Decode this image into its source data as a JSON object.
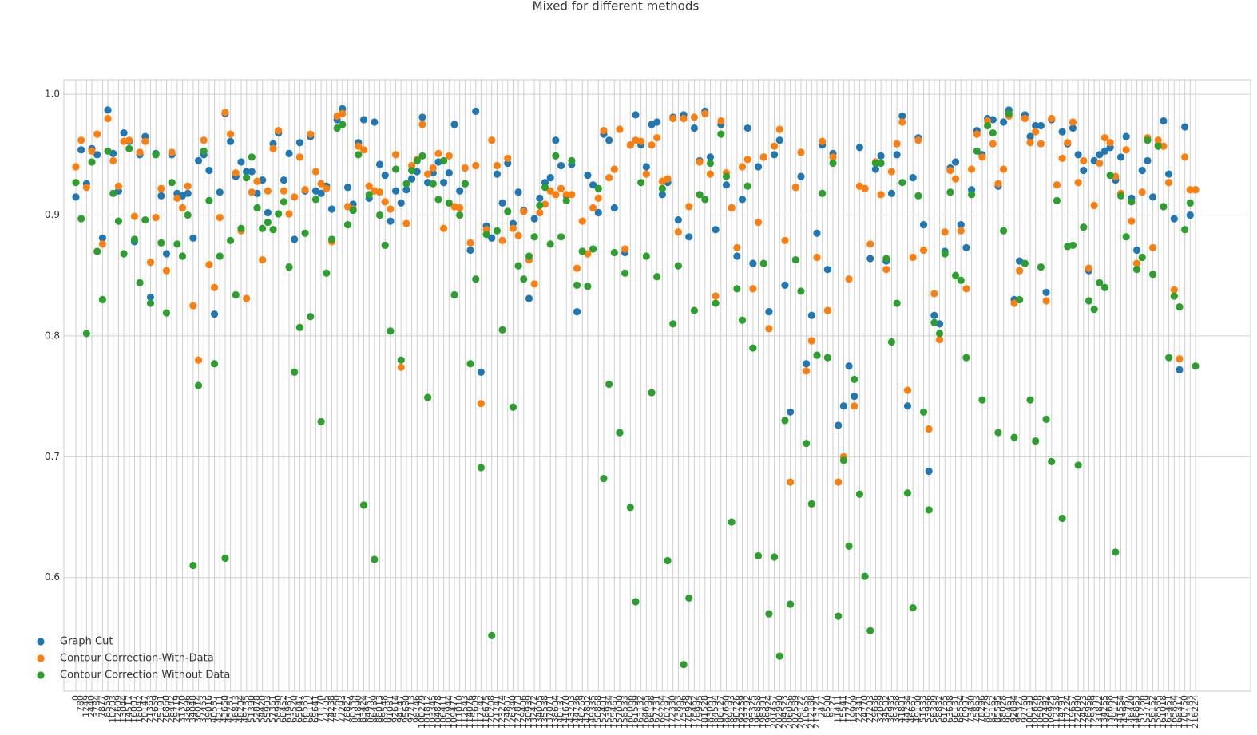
{
  "chart_data": {
    "type": "scatter",
    "title": "Mixed for different methods",
    "categories": [
      "0",
      "780",
      "1249",
      "2440",
      "3784",
      "7877",
      "8559",
      "10203",
      "12609",
      "13044",
      "14517",
      "16007",
      "18042",
      "20147",
      "21363",
      "23659",
      "25191",
      "26860",
      "28442",
      "29719",
      "31370",
      "32696",
      "34048",
      "36014",
      "37453",
      "39016",
      "40587",
      "42111",
      "43650",
      "45287",
      "46813",
      "48204",
      "49735",
      "51390",
      "52878",
      "54420",
      "55903",
      "57361",
      "58990",
      "60452",
      "61987",
      "63520",
      "65047",
      "66583",
      "68112",
      "69641",
      "71170",
      "72705",
      "74238",
      "75760",
      "77293",
      "78827",
      "80359",
      "81890",
      "83424",
      "84957",
      "86489",
      "88013",
      "89548",
      "91081",
      "92614",
      "94147",
      "95680",
      "97213",
      "98746",
      "100279",
      "101812",
      "103345",
      "104878",
      "106411",
      "107944",
      "109477",
      "111010",
      "112543",
      "114076",
      "115609",
      "117142",
      "118675",
      "120208",
      "121741",
      "123274",
      "124807",
      "126340",
      "127873",
      "129406",
      "130939",
      "132472",
      "134005",
      "135538",
      "137071",
      "138604",
      "140137",
      "141670",
      "143203",
      "144736",
      "146269",
      "147802",
      "149335",
      "150868",
      "152401",
      "153934",
      "155467",
      "157000",
      "158533",
      "160066",
      "161599",
      "163132",
      "164665",
      "166198",
      "167731",
      "169264",
      "170797",
      "172330",
      "173863",
      "175396",
      "176929",
      "178462",
      "179995",
      "181528",
      "183061",
      "184594",
      "186127",
      "187660",
      "189193",
      "190726",
      "192259",
      "193792",
      "195325",
      "196858",
      "198391",
      "199924",
      "201457",
      "202990",
      "204523",
      "206056",
      "207589",
      "209122",
      "210655",
      "212188",
      "213721",
      "2477",
      "8500",
      "9127",
      "11411",
      "15541",
      "17277",
      "19909",
      "22341",
      "24770",
      "27203",
      "29636",
      "32069",
      "34502",
      "36935",
      "39368",
      "41801",
      "44234",
      "46667",
      "49100",
      "51533",
      "53966",
      "56399",
      "58832",
      "61265",
      "63698",
      "66131",
      "68564",
      "70997",
      "73430",
      "75863",
      "78296",
      "80729",
      "83162",
      "85595",
      "88028",
      "90461",
      "92894",
      "95327",
      "97760",
      "100193",
      "102626",
      "105059",
      "107492",
      "109925",
      "112358",
      "114791",
      "117224",
      "119657",
      "122090",
      "124523",
      "126956",
      "129389",
      "131822",
      "134255",
      "136688",
      "139121",
      "141554",
      "143987",
      "146420",
      "148853",
      "151286",
      "153719",
      "156152",
      "158585",
      "161018",
      "163451",
      "165884",
      "168317",
      "170750",
      "173183",
      "216224"
    ],
    "series": [
      {
        "name": "Graph Cut",
        "color": "#1f77b4",
        "values": [
          0.915,
          0.954,
          0.926,
          0.955,
          0.95,
          0.881,
          0.987,
          0.951,
          0.92,
          0.968,
          0.961,
          0.878,
          0.95,
          0.965,
          0.832,
          0.951,
          0.916,
          0.868,
          0.95,
          0.918,
          0.916,
          0.918,
          0.881,
          0.945,
          0.95,
          0.937,
          0.818,
          0.919,
          0.984,
          0.961,
          0.932,
          0.944,
          0.936,
          0.936,
          0.918,
          0.929,
          0.902,
          0.959,
          0.968,
          0.929,
          0.951,
          0.88,
          0.96,
          0.92,
          0.965,
          0.92,
          0.918,
          0.924,
          0.905,
          0.979,
          0.988,
          0.923,
          0.909,
          0.96,
          0.979,
          0.914,
          0.977,
          0.942,
          0.933,
          0.895,
          0.92,
          0.91,
          0.921,
          0.93,
          0.936,
          0.981,
          0.927,
          0.935,
          0.944,
          0.927,
          0.935,
          0.975,
          0.92,
          0.926,
          0.871,
          0.986,
          0.77,
          0.891,
          0.881,
          0.934,
          0.91,
          0.943,
          0.893,
          0.919,
          0.904,
          0.831,
          0.897,
          0.914,
          0.927,
          0.931,
          0.962,
          0.941,
          0.916,
          0.942,
          0.82,
          0.87,
          0.933,
          0.925,
          0.902,
          0.967,
          0.962,
          0.906,
          0.72,
          0.869,
          0.958,
          0.983,
          0.958,
          0.94,
          0.975,
          0.977,
          0.917,
          0.927,
          0.981,
          0.896,
          0.983,
          0.882,
          0.972,
          0.945,
          0.986,
          0.948,
          0.888,
          0.975,
          0.925,
          0.906,
          0.866,
          0.913,
          0.972,
          0.86,
          0.94,
          0.948,
          0.82,
          0.95,
          0.962,
          0.842,
          0.737,
          0.923,
          0.932,
          0.777,
          0.817,
          0.885,
          0.958,
          0.855,
          0.951,
          0.726,
          0.742,
          0.775,
          0.75,
          0.956,
          0.922,
          0.864,
          0.938,
          0.949,
          0.862,
          0.918,
          0.95,
          0.982,
          0.742,
          0.931,
          0.964,
          0.892,
          0.688,
          0.817,
          0.81,
          0.87,
          0.939,
          0.944,
          0.892,
          0.873,
          0.921,
          0.97,
          0.95,
          0.98,
          0.979,
          0.924,
          0.977,
          0.987,
          0.83,
          0.862,
          0.983,
          0.965,
          0.974,
          0.974,
          0.836,
          0.979,
          0.925,
          0.969,
          0.959,
          0.972,
          0.95,
          0.937,
          0.854,
          0.945,
          0.95,
          0.953,
          0.956,
          0.929,
          0.948,
          0.965,
          0.914,
          0.871,
          0.937,
          0.945,
          0.915,
          0.958,
          0.978,
          0.934,
          0.897,
          0.772,
          0.973,
          0.9,
          0.921
        ]
      },
      {
        "name": "Contour Correction-With-Data",
        "color": "#ff7f0e",
        "values": [
          0.94,
          0.962,
          0.923,
          0.953,
          0.967,
          0.876,
          0.98,
          0.945,
          0.924,
          0.961,
          0.962,
          0.899,
          0.952,
          0.961,
          0.861,
          0.898,
          0.922,
          0.854,
          0.952,
          0.914,
          0.906,
          0.924,
          0.825,
          0.78,
          0.962,
          0.859,
          0.84,
          0.898,
          0.985,
          0.967,
          0.935,
          0.887,
          0.831,
          0.919,
          0.928,
          0.863,
          0.92,
          0.955,
          0.97,
          0.92,
          0.901,
          0.915,
          0.948,
          0.921,
          0.967,
          0.936,
          0.926,
          0.922,
          0.878,
          0.982,
          0.984,
          0.907,
          0.905,
          0.957,
          0.954,
          0.924,
          0.92,
          0.919,
          0.911,
          0.905,
          0.95,
          0.774,
          0.893,
          0.941,
          0.946,
          0.975,
          0.934,
          0.939,
          0.951,
          0.889,
          0.949,
          0.907,
          0.906,
          0.939,
          0.877,
          0.941,
          0.744,
          0.888,
          0.962,
          0.941,
          0.879,
          0.947,
          0.889,
          0.883,
          0.903,
          0.863,
          0.843,
          0.902,
          0.909,
          0.92,
          0.917,
          0.922,
          0.917,
          0.917,
          0.856,
          0.895,
          0.868,
          0.906,
          0.914,
          0.97,
          0.931,
          0.938,
          0.971,
          0.872,
          0.958,
          0.962,
          0.961,
          0.934,
          0.958,
          0.964,
          0.928,
          0.93,
          0.98,
          0.886,
          0.98,
          0.907,
          0.981,
          0.944,
          0.984,
          0.934,
          0.833,
          0.978,
          0.935,
          0.906,
          0.873,
          0.94,
          0.946,
          0.839,
          0.894,
          0.948,
          0.806,
          0.957,
          0.971,
          0.879,
          0.679,
          0.923,
          0.952,
          0.771,
          0.796,
          0.865,
          0.961,
          0.821,
          0.948,
          0.679,
          0.7,
          0.847,
          0.742,
          0.924,
          0.922,
          0.876,
          0.944,
          0.917,
          0.855,
          0.936,
          0.959,
          0.977,
          0.755,
          0.865,
          0.962,
          0.871,
          0.723,
          0.835,
          0.797,
          0.886,
          0.937,
          0.93,
          0.887,
          0.839,
          0.938,
          0.967,
          0.948,
          0.978,
          0.959,
          0.926,
          0.938,
          0.982,
          0.827,
          0.854,
          0.98,
          0.96,
          0.969,
          0.959,
          0.829,
          0.98,
          0.925,
          0.947,
          0.96,
          0.977,
          0.927,
          0.945,
          0.856,
          0.908,
          0.943,
          0.964,
          0.96,
          0.932,
          0.918,
          0.954,
          0.895,
          0.86,
          0.919,
          0.964,
          0.873,
          0.962,
          0.957,
          0.927,
          0.838,
          0.781,
          0.948,
          0.921,
          0.921
        ]
      },
      {
        "name": "Contour Correction Without Data",
        "color": "#2ca02c",
        "values": [
          0.927,
          0.897,
          0.802,
          0.944,
          0.87,
          0.83,
          0.953,
          0.918,
          0.895,
          0.868,
          0.955,
          0.88,
          0.844,
          0.896,
          0.827,
          0.95,
          0.877,
          0.819,
          0.927,
          0.876,
          0.866,
          0.9,
          0.61,
          0.759,
          0.953,
          0.912,
          0.777,
          0.866,
          0.616,
          0.879,
          0.834,
          0.889,
          0.931,
          0.948,
          0.906,
          0.889,
          0.894,
          0.888,
          0.901,
          0.911,
          0.857,
          0.77,
          0.807,
          0.885,
          0.816,
          0.913,
          0.729,
          0.852,
          0.88,
          0.972,
          0.975,
          0.892,
          0.904,
          0.95,
          0.66,
          0.917,
          0.615,
          0.9,
          0.875,
          0.804,
          0.938,
          0.78,
          0.926,
          0.937,
          0.945,
          0.949,
          0.749,
          0.926,
          0.913,
          0.945,
          0.91,
          0.834,
          0.9,
          0.926,
          0.777,
          0.847,
          0.691,
          0.884,
          0.552,
          0.887,
          0.805,
          0.903,
          0.741,
          0.858,
          0.847,
          0.866,
          0.882,
          0.908,
          0.923,
          0.876,
          0.949,
          0.882,
          0.912,
          0.945,
          0.842,
          0.87,
          0.841,
          0.872,
          0.922,
          0.682,
          0.76,
          0.869,
          0.72,
          0.852,
          0.658,
          0.58,
          0.927,
          0.866,
          0.753,
          0.849,
          0.922,
          0.614,
          0.81,
          0.858,
          0.528,
          0.583,
          0.821,
          0.917,
          0.913,
          0.943,
          0.827,
          0.967,
          0.932,
          0.646,
          0.839,
          0.813,
          0.924,
          0.79,
          0.618,
          0.86,
          0.57,
          0.617,
          0.535,
          0.73,
          0.578,
          0.863,
          0.837,
          0.711,
          0.661,
          0.784,
          0.918,
          0.782,
          0.943,
          0.568,
          0.697,
          0.626,
          0.764,
          0.669,
          0.601,
          0.556,
          0.943,
          0.943,
          0.864,
          0.795,
          0.827,
          0.927,
          0.67,
          0.575,
          0.916,
          0.737,
          0.656,
          0.811,
          0.802,
          0.868,
          0.919,
          0.85,
          0.846,
          0.782,
          0.917,
          0.953,
          0.747,
          0.974,
          0.968,
          0.72,
          0.887,
          0.984,
          0.716,
          0.83,
          0.86,
          0.747,
          0.713,
          0.857,
          0.731,
          0.696,
          0.912,
          0.649,
          0.874,
          0.875,
          0.693,
          0.89,
          0.829,
          0.822,
          0.844,
          0.84,
          0.933,
          0.621,
          0.916,
          0.882,
          0.911,
          0.855,
          0.865,
          0.962,
          0.851,
          0.957,
          0.907,
          0.782,
          0.833,
          0.824,
          0.888,
          0.91,
          0.775
        ]
      }
    ],
    "ylim": [
      0.506,
      1.012
    ],
    "yticks": [
      0.6,
      0.7,
      0.8,
      0.9,
      {
        "value": 1,
        "label": "1.0"
      }
    ],
    "grid": true,
    "legend": "lower left"
  }
}
